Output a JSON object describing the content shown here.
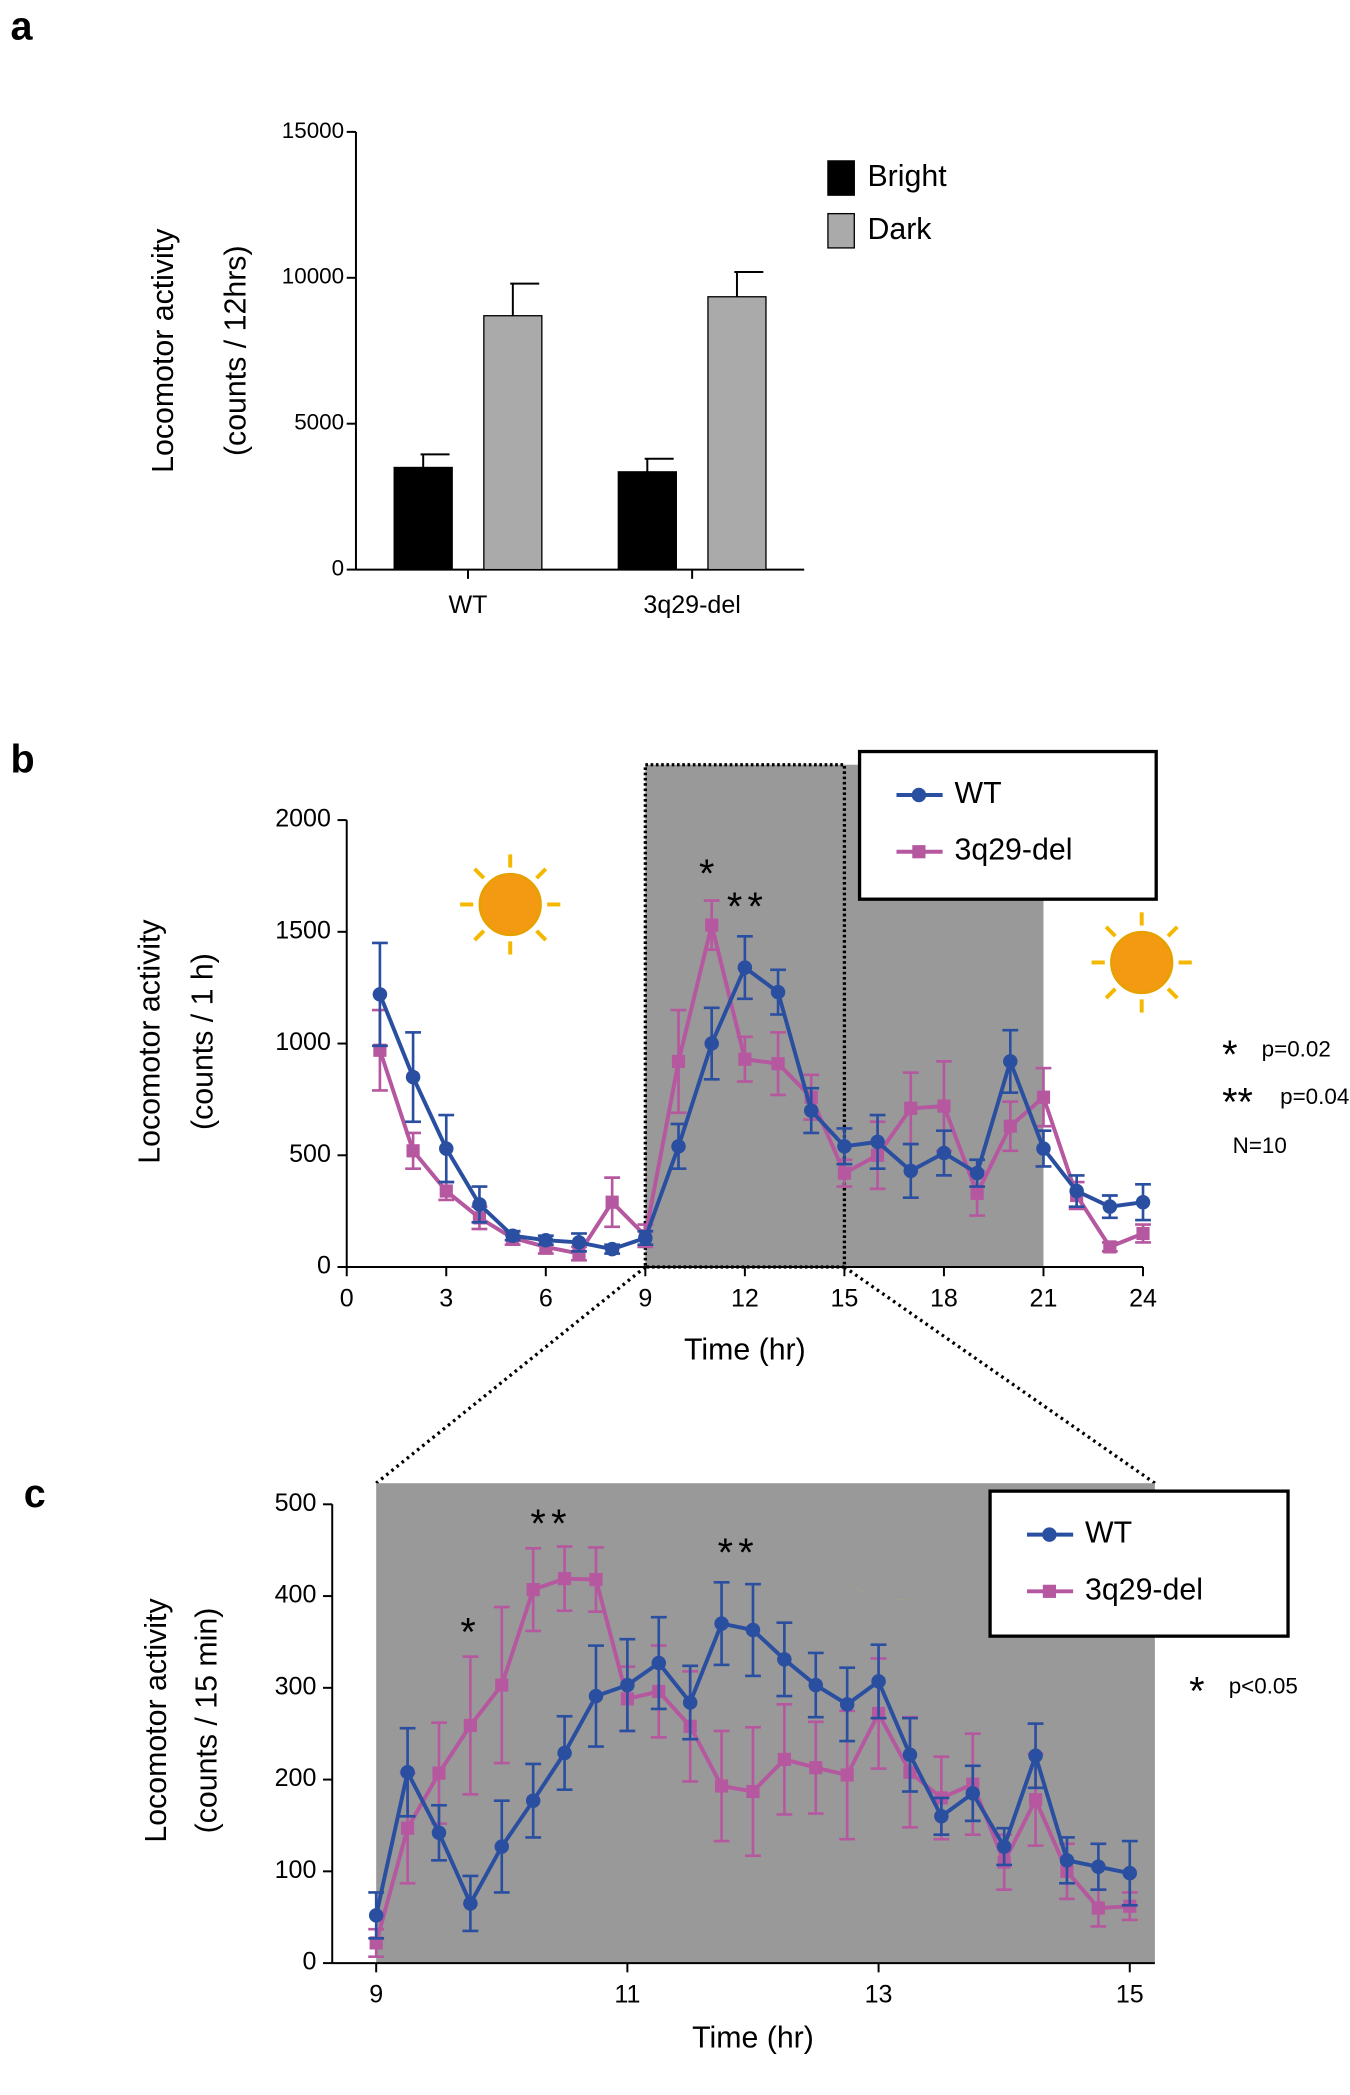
{
  "chart_data": [
    {
      "type": "bar",
      "panel": "a",
      "ylabel": [
        "Locomotor activity",
        "(counts / 12hrs)"
      ],
      "categories": [
        "WT",
        "3q29-del"
      ],
      "series": [
        {
          "name": "Bright",
          "color": "#000000",
          "values": [
            3500,
            3350
          ],
          "errors": [
            450,
            450
          ]
        },
        {
          "name": "Dark",
          "color": "#aaaaaa",
          "values": [
            8700,
            9350
          ],
          "errors": [
            1100,
            850
          ]
        }
      ],
      "ylim": [
        0,
        15000
      ],
      "yticks": [
        0,
        5000,
        10000,
        15000
      ],
      "legend": "top-right"
    },
    {
      "type": "line",
      "panel": "b",
      "ylabel": [
        "Locomotor activity",
        "(counts / 1 h)"
      ],
      "xlabel": "Time (hr)",
      "x": [
        1,
        2,
        3,
        4,
        5,
        6,
        7,
        8,
        9,
        10,
        11,
        12,
        13,
        14,
        15,
        16,
        17,
        18,
        19,
        20,
        21,
        22,
        23,
        24
      ],
      "series": [
        {
          "name": "WT",
          "color": "#2a4fa0",
          "marker": "circle",
          "values": [
            1220,
            850,
            530,
            280,
            140,
            120,
            110,
            80,
            130,
            540,
            1000,
            1340,
            1230,
            700,
            540,
            560,
            430,
            510,
            420,
            920,
            530,
            340,
            270,
            290
          ],
          "errors": [
            230,
            200,
            150,
            80,
            20,
            20,
            40,
            20,
            30,
            100,
            160,
            140,
            100,
            100,
            80,
            120,
            120,
            100,
            60,
            140,
            80,
            70,
            50,
            80
          ]
        },
        {
          "name": "3q29-del",
          "color": "#b5589f",
          "marker": "square",
          "values": [
            970,
            520,
            340,
            220,
            130,
            90,
            60,
            290,
            140,
            920,
            1530,
            930,
            910,
            760,
            420,
            500,
            710,
            720,
            330,
            630,
            760,
            320,
            90,
            150
          ],
          "errors": [
            180,
            80,
            40,
            50,
            30,
            30,
            30,
            110,
            50,
            230,
            110,
            100,
            140,
            100,
            60,
            150,
            160,
            200,
            100,
            110,
            130,
            60,
            20,
            40
          ]
        }
      ],
      "xlim": [
        0,
        24
      ],
      "xticks": [
        0,
        3,
        6,
        9,
        12,
        15,
        18,
        21,
        24
      ],
      "ylim": [
        0,
        2000
      ],
      "yticks": [
        0,
        500,
        1000,
        1500,
        2000
      ],
      "dark": [
        9,
        21
      ],
      "zoom": [
        9,
        15
      ],
      "legend": "top-right",
      "annotations": [
        "*",
        "**"
      ],
      "notes": [
        {
          "mark": "*",
          "text": "p=0.02"
        },
        {
          "mark": "**",
          "text": "p=0.04"
        },
        {
          "mark": "",
          "text": "N=10"
        }
      ]
    },
    {
      "type": "line",
      "panel": "c",
      "ylabel": [
        "Locomotor activity",
        "(counts / 15 min)"
      ],
      "xlabel": "Time (hr)",
      "x": [
        9,
        9.25,
        9.5,
        9.75,
        10,
        10.25,
        10.5,
        10.75,
        11,
        11.25,
        11.5,
        11.75,
        12,
        12.25,
        12.5,
        12.75,
        13,
        13.25,
        13.5,
        13.75,
        14,
        14.25,
        14.5,
        14.75,
        15
      ],
      "series": [
        {
          "name": "WT",
          "color": "#2a4fa0",
          "marker": "circle",
          "values": [
            52,
            208,
            142,
            65,
            127,
            177,
            229,
            291,
            303,
            327,
            284,
            370,
            363,
            331,
            303,
            282,
            307,
            227,
            160,
            185,
            127,
            226,
            112,
            105,
            98
          ],
          "errors": [
            25,
            48,
            30,
            30,
            50,
            40,
            40,
            55,
            50,
            50,
            40,
            45,
            50,
            40,
            35,
            40,
            40,
            40,
            20,
            30,
            20,
            35,
            25,
            25,
            35
          ]
        },
        {
          "name": "3q29-del",
          "color": "#b5589f",
          "marker": "square",
          "values": [
            22,
            147,
            207,
            259,
            303,
            407,
            419,
            418,
            288,
            296,
            258,
            193,
            187,
            222,
            213,
            205,
            272,
            208,
            180,
            195,
            110,
            178,
            100,
            60,
            62
          ],
          "errors": [
            15,
            60,
            55,
            75,
            85,
            45,
            35,
            35,
            35,
            50,
            60,
            60,
            70,
            60,
            50,
            70,
            60,
            60,
            45,
            55,
            30,
            50,
            30,
            20,
            15
          ]
        }
      ],
      "xlim": [
        8.65,
        15.2
      ],
      "xticks": [
        9,
        11,
        13,
        15
      ],
      "ylim": [
        0,
        500
      ],
      "yticks": [
        0,
        100,
        200,
        300,
        400,
        500
      ],
      "legend": "top-right",
      "annotations": [
        "*",
        "**",
        "**"
      ],
      "notes": [
        {
          "mark": "*",
          "text": "p<0.05"
        }
      ]
    }
  ]
}
